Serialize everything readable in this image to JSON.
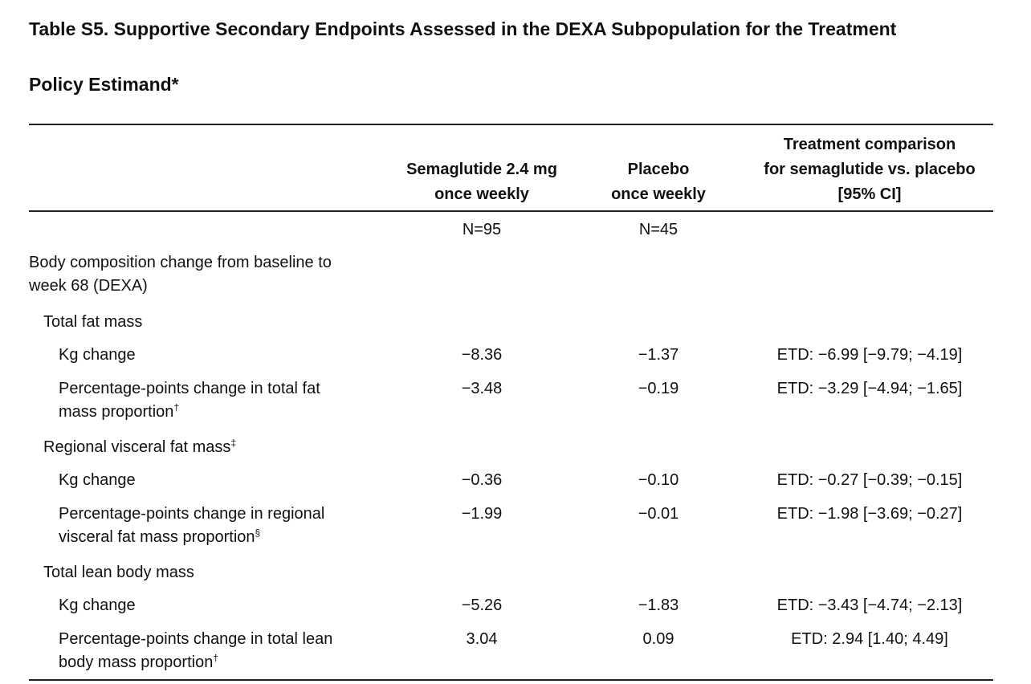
{
  "title": {
    "line1": "Table S5. Supportive Secondary Endpoints Assessed in the DEXA Subpopulation for the Treatment",
    "line2": "Policy Estimand*"
  },
  "header": {
    "semaglutide": [
      "Semaglutide 2.4 mg",
      "once weekly"
    ],
    "placebo": [
      "Placebo",
      "once weekly"
    ],
    "comparison": [
      "Treatment comparison",
      "for semaglutide vs. placebo",
      "[95% CI]"
    ]
  },
  "counts": {
    "semaglutide": "N=95",
    "placebo": "N=45"
  },
  "section": {
    "label_line1": "Body composition change from baseline to",
    "label_line2": "week 68 (DEXA)"
  },
  "groups": {
    "total_fat": {
      "label": "Total fat mass",
      "kg": {
        "label": "Kg change",
        "sema": "−8.36",
        "placebo": "−1.37",
        "etd": "ETD: −6.99 [−9.79; −4.19]"
      },
      "pct": {
        "label_line1": "Percentage-points change in total fat",
        "label_line2": "mass proportion",
        "mark": "†",
        "sema": "−3.48",
        "placebo": "−0.19",
        "etd": "ETD: −3.29 [−4.94; −1.65]"
      }
    },
    "visceral_fat": {
      "label": "Regional visceral fat mass",
      "mark": "‡",
      "kg": {
        "label": "Kg change",
        "sema": "−0.36",
        "placebo": "−0.10",
        "etd": "ETD: −0.27 [−0.39; −0.15]"
      },
      "pct": {
        "label_line1": "Percentage-points change in regional",
        "label_line2": "visceral fat mass proportion",
        "mark": "§",
        "sema": "−1.99",
        "placebo": "−0.01",
        "etd": "ETD: −1.98 [−3.69; −0.27]"
      }
    },
    "lean_mass": {
      "label": "Total lean body mass",
      "kg": {
        "label": "Kg change",
        "sema": "−5.26",
        "placebo": "−1.83",
        "etd": "ETD: −3.43 [−4.74; −2.13]"
      },
      "pct": {
        "label_line1": "Percentage-points change in total lean",
        "label_line2": "body mass proportion",
        "mark": "†",
        "sema": "3.04",
        "placebo": "0.09",
        "etd": "ETD: 2.94 [1.40; 4.49]"
      }
    }
  }
}
